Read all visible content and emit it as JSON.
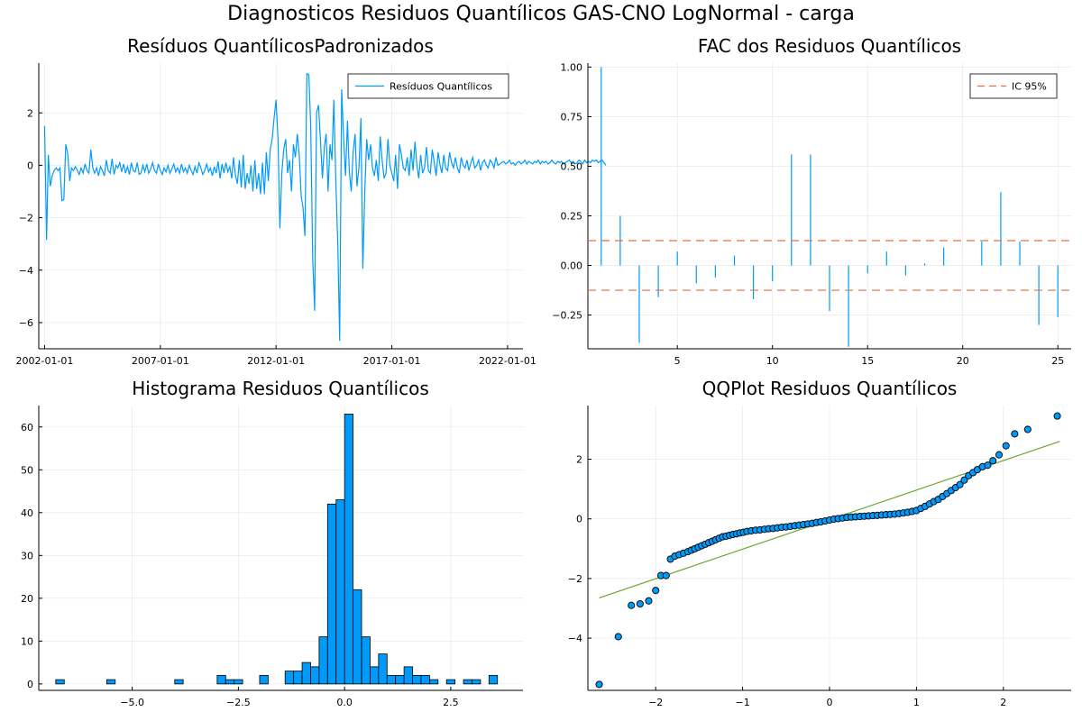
{
  "figure": {
    "title": "Diagnosticos Residuos  Quantílicos GAS-CNO LogNormal - carga"
  },
  "colors": {
    "series": "#009AFA",
    "ic": "#E26F46",
    "qqline": "#6AA631",
    "grid": "#E5E5E5",
    "axis": "#000000"
  },
  "chart_data": [
    {
      "id": "residuals",
      "type": "line",
      "title": "Resíduos  QuantílicosPadronizados",
      "x_axis": "date",
      "xlim": [
        "2001-10-01",
        "2022-09-01"
      ],
      "ylim": [
        -7,
        3.9
      ],
      "xticks": [
        {
          "value": "2002-01-01",
          "label": "2002-01-01"
        },
        {
          "value": "2007-01-01",
          "label": "2007-01-01"
        },
        {
          "value": "2012-01-01",
          "label": "2012-01-01"
        },
        {
          "value": "2017-01-01",
          "label": "2017-01-01"
        },
        {
          "value": "2022-01-01",
          "label": "2022-01-01"
        }
      ],
      "yticks": [
        {
          "value": -6,
          "label": "−6"
        },
        {
          "value": -4,
          "label": "−4"
        },
        {
          "value": -2,
          "label": "−2"
        },
        {
          "value": 0,
          "label": "0"
        },
        {
          "value": 2,
          "label": "2"
        }
      ],
      "legend": {
        "position": "top-right",
        "entries": [
          {
            "label": "Resíduos Quantílicos",
            "style": "line",
            "color": "#009AFA"
          }
        ]
      },
      "series": [
        {
          "name": "Resíduos Quantílicos",
          "x_start": "2002-01-01",
          "frequency": "monthly",
          "values": [
            1.5,
            -2.85,
            0.4,
            -0.8,
            -0.4,
            -0.2,
            -0.1,
            -0.2,
            -0.1,
            -1.35,
            -1.3,
            0.8,
            0.45,
            -0.6,
            -0.1,
            -0.2,
            -0.05,
            -0.2,
            -0.35,
            -0.1,
            -0.3,
            0.05,
            -0.2,
            -0.3,
            0.6,
            -0.1,
            -0.3,
            -0.1,
            -0.4,
            -0.05,
            -0.2,
            -0.4,
            0.2,
            -0.2,
            -0.3,
            0.25,
            -0.35,
            0.0,
            -0.1,
            0.1,
            -0.25,
            0.05,
            -0.3,
            -0.05,
            -0.35,
            0.1,
            -0.2,
            -0.25,
            0.1,
            -0.35,
            -0.3,
            0.0,
            -0.25,
            0.05,
            -0.3,
            -0.15,
            0.1,
            -0.2,
            -0.3,
            0.05,
            -0.2,
            -0.35,
            -0.1,
            -0.25,
            0.0,
            -0.3,
            -0.15,
            0.05,
            -0.25,
            -0.1,
            -0.3,
            0.05,
            -0.25,
            -0.1,
            -0.3,
            0.0,
            -0.2,
            -0.35,
            -0.05,
            -0.3,
            0.1,
            -0.1,
            -0.35,
            -0.2,
            0.05,
            -0.25,
            -0.1,
            -0.4,
            -0.05,
            -0.3,
            0.15,
            -0.5,
            0.05,
            -0.3,
            0.1,
            -0.25,
            -0.05,
            -0.5,
            0.3,
            -0.4,
            -0.7,
            0.2,
            -0.85,
            0.4,
            -0.9,
            -0.3,
            -0.7,
            0.0,
            -1.0,
            0.2,
            -0.9,
            -0.3,
            -1.1,
            0.1,
            -1.1,
            0.5,
            -0.6,
            0.6,
            1.0,
            1.8,
            2.5,
            1.0,
            -2.4,
            -0.3,
            0.6,
            1.0,
            -0.3,
            0.2,
            -1.0,
            0.8,
            0.3,
            1.2,
            0.4,
            -1.2,
            -1.6,
            -2.7,
            3.5,
            3.45,
            1.5,
            -3.5,
            -5.55,
            2.0,
            2.3,
            1.0,
            -0.5,
            0.7,
            1.2,
            -1.0,
            0.8,
            0.2,
            2.5,
            -0.6,
            -3.0,
            -6.7,
            2.9,
            1.1,
            -0.4,
            1.7,
            -0.2,
            -1.0,
            0.5,
            1.2,
            -0.8,
            -0.1,
            1.8,
            -3.95,
            -1.0,
            1.0,
            0.2,
            0.8,
            -0.1,
            -0.4,
            0.2,
            -0.6,
            1.1,
            0.2,
            -0.5,
            -0.3,
            1.0,
            0.0,
            -0.3,
            -0.6,
            0.4,
            -0.9,
            0.8,
            0.4,
            -0.1,
            -0.2,
            0.3,
            -0.4,
            0.6,
            -0.2,
            0.9,
            0.0,
            -0.5,
            0.4,
            -0.3,
            -0.1,
            0.7,
            -0.2,
            -0.3,
            0.6,
            0.1,
            -0.4,
            0.5,
            0.0,
            -0.3,
            0.4,
            -0.1,
            -0.2,
            0.5,
            0.1,
            -0.1,
            0.3,
            -0.1,
            -0.3,
            0.3,
            0.0,
            -0.1,
            0.2,
            -0.2,
            0.1,
            0.3,
            -0.1,
            0.0,
            0.2,
            -0.2,
            0.1,
            0.2,
            0.0,
            -0.1,
            0.2,
            0.1,
            -0.1,
            0.3,
            0.0,
            0.05,
            0.1,
            0.15,
            0.05,
            0.1,
            0.2,
            0.05,
            0.1,
            0.0,
            0.1,
            0.15,
            0.05,
            0.1,
            0.2,
            0.05,
            0.15,
            0.1,
            0.05,
            0.15,
            0.1,
            0.2,
            0.05,
            0.15,
            0.1,
            0.15,
            0.05,
            0.1,
            0.2,
            0.1,
            0.05,
            0.15,
            0.1,
            0.15,
            0.05,
            0.1,
            0.15,
            0.2,
            0.1,
            0.15,
            0.05,
            0.1,
            0.2,
            0.15,
            0.05,
            0.2,
            0.1,
            0.15,
            0.1,
            0.2,
            0.15,
            0.2,
            0.1,
            0.15,
            0.2,
            0.1,
            0.0
          ]
        }
      ]
    },
    {
      "id": "acf",
      "type": "bar",
      "title": "FAC dos Residuos Quantílicos",
      "xlim": [
        0.3,
        25.7
      ],
      "ylim": [
        -0.42,
        1.02
      ],
      "xticks": [
        {
          "value": 5,
          "label": "5"
        },
        {
          "value": 10,
          "label": "10"
        },
        {
          "value": 15,
          "label": "15"
        },
        {
          "value": 20,
          "label": "20"
        },
        {
          "value": 25,
          "label": "25"
        }
      ],
      "yticks": [
        {
          "value": -0.25,
          "label": "−0.25"
        },
        {
          "value": 0,
          "label": "0.00"
        },
        {
          "value": 0.25,
          "label": "0.25"
        },
        {
          "value": 0.5,
          "label": "0.50"
        },
        {
          "value": 0.75,
          "label": "0.75"
        },
        {
          "value": 1,
          "label": "1.00"
        }
      ],
      "legend": {
        "position": "top-right",
        "entries": [
          {
            "label": "IC 95%",
            "style": "dashed",
            "color": "#E26F46"
          }
        ]
      },
      "lags": [
        1,
        2,
        3,
        4,
        5,
        6,
        7,
        8,
        9,
        10,
        11,
        12,
        13,
        14,
        15,
        16,
        17,
        18,
        19,
        20,
        21,
        22,
        23,
        24,
        25
      ],
      "values": [
        1.0,
        0.25,
        -0.39,
        -0.16,
        0.07,
        -0.09,
        -0.06,
        0.05,
        -0.17,
        -0.08,
        0.56,
        0.56,
        -0.23,
        -0.41,
        -0.04,
        0.07,
        -0.05,
        0.01,
        0.09,
        0.0,
        0.12,
        0.37,
        0.12,
        -0.3,
        -0.26
      ],
      "confidence_band": 0.125
    },
    {
      "id": "histogram",
      "type": "bar",
      "title": "Histograma Residuos Quantílicos",
      "xlim": [
        -7.2,
        4.2
      ],
      "ylim": [
        -1.5,
        65
      ],
      "xticks": [
        {
          "value": -5,
          "label": "−5.0"
        },
        {
          "value": -2.5,
          "label": "−2.5"
        },
        {
          "value": 0,
          "label": "0.0"
        },
        {
          "value": 2.5,
          "label": "2.5"
        }
      ],
      "yticks": [
        {
          "value": 0,
          "label": "0"
        },
        {
          "value": 10,
          "label": "10"
        },
        {
          "value": 20,
          "label": "20"
        },
        {
          "value": 30,
          "label": "30"
        },
        {
          "value": 40,
          "label": "40"
        },
        {
          "value": 50,
          "label": "50"
        },
        {
          "value": 60,
          "label": "60"
        }
      ],
      "bins": [
        -6.8,
        -6.6,
        -6.4,
        -6.2,
        -6.0,
        -5.8,
        -5.6,
        -5.4,
        -5.2,
        -5.0,
        -4.8,
        -4.6,
        -4.4,
        -4.2,
        -4.0,
        -3.8,
        -3.6,
        -3.4,
        -3.2,
        -3.0,
        -2.8,
        -2.6,
        -2.4,
        -2.2,
        -2.0,
        -1.8,
        -1.6,
        -1.4,
        -1.2,
        -1.0,
        -0.8,
        -0.6,
        -0.4,
        -0.2,
        0.0,
        0.2,
        0.4,
        0.6,
        0.8,
        1.0,
        1.2,
        1.4,
        1.6,
        1.8,
        2.0,
        2.2,
        2.4,
        2.6,
        2.8,
        3.0,
        3.2,
        3.4,
        3.6
      ],
      "counts": [
        1,
        0,
        0,
        0,
        0,
        0,
        1,
        0,
        0,
        0,
        0,
        0,
        0,
        0,
        1,
        0,
        0,
        0,
        0,
        2,
        1,
        1,
        0,
        0,
        2,
        0,
        0,
        3,
        3,
        5,
        4,
        11,
        42,
        43,
        63,
        22,
        11,
        4,
        7,
        2,
        2,
        4,
        2,
        2,
        1,
        0,
        1,
        0,
        1,
        1,
        0,
        2
      ]
    },
    {
      "id": "qqplot",
      "type": "scatter",
      "title": "QQPlot Residuos Quantílicos",
      "xlim": [
        -2.78,
        2.78
      ],
      "ylim": [
        -5.75,
        3.8
      ],
      "xticks": [
        {
          "value": -2,
          "label": "−2"
        },
        {
          "value": -1,
          "label": "−1"
        },
        {
          "value": 0,
          "label": "0"
        },
        {
          "value": 1,
          "label": "1"
        },
        {
          "value": 2,
          "label": "2"
        }
      ],
      "yticks": [
        {
          "value": -4,
          "label": "−4"
        },
        {
          "value": -2,
          "label": "−2"
        },
        {
          "value": 0,
          "label": "0"
        },
        {
          "value": 2,
          "label": "2"
        }
      ],
      "reference_line": {
        "x": [
          -2.65,
          2.65
        ],
        "y": [
          -2.65,
          2.6
        ]
      },
      "points": [
        [
          -2.65,
          -5.55
        ],
        [
          -2.43,
          -3.95
        ],
        [
          -2.28,
          -2.9
        ],
        [
          -2.18,
          -2.85
        ],
        [
          -2.08,
          -2.75
        ],
        [
          -2.0,
          -2.4
        ],
        [
          -1.94,
          -1.9
        ],
        [
          -1.88,
          -1.9
        ],
        [
          -1.83,
          -1.35
        ],
        [
          -1.78,
          -1.25
        ],
        [
          -1.73,
          -1.2
        ],
        [
          -1.68,
          -1.15
        ],
        [
          -1.63,
          -1.1
        ],
        [
          -1.59,
          -1.05
        ],
        [
          -1.55,
          -1.0
        ],
        [
          -1.51,
          -0.95
        ],
        [
          -1.47,
          -0.9
        ],
        [
          -1.43,
          -0.85
        ],
        [
          -1.39,
          -0.8
        ],
        [
          -1.35,
          -0.75
        ],
        [
          -1.31,
          -0.7
        ],
        [
          -1.27,
          -0.65
        ],
        [
          -1.23,
          -0.6
        ],
        [
          -1.19,
          -0.58
        ],
        [
          -1.15,
          -0.55
        ],
        [
          -1.11,
          -0.52
        ],
        [
          -1.07,
          -0.5
        ],
        [
          -1.03,
          -0.47
        ],
        [
          -0.99,
          -0.45
        ],
        [
          -0.95,
          -0.42
        ],
        [
          -0.9,
          -0.4
        ],
        [
          -0.85,
          -0.38
        ],
        [
          -0.8,
          -0.37
        ],
        [
          -0.75,
          -0.35
        ],
        [
          -0.7,
          -0.33
        ],
        [
          -0.65,
          -0.32
        ],
        [
          -0.6,
          -0.3
        ],
        [
          -0.55,
          -0.28
        ],
        [
          -0.5,
          -0.27
        ],
        [
          -0.45,
          -0.25
        ],
        [
          -0.4,
          -0.23
        ],
        [
          -0.35,
          -0.21
        ],
        [
          -0.3,
          -0.19
        ],
        [
          -0.25,
          -0.17
        ],
        [
          -0.2,
          -0.15
        ],
        [
          -0.15,
          -0.12
        ],
        [
          -0.1,
          -0.1
        ],
        [
          -0.05,
          -0.07
        ],
        [
          0.0,
          -0.04
        ],
        [
          0.05,
          -0.01
        ],
        [
          0.1,
          0.01
        ],
        [
          0.15,
          0.03
        ],
        [
          0.2,
          0.05
        ],
        [
          0.25,
          0.06
        ],
        [
          0.3,
          0.07
        ],
        [
          0.35,
          0.08
        ],
        [
          0.4,
          0.09
        ],
        [
          0.45,
          0.1
        ],
        [
          0.5,
          0.11
        ],
        [
          0.55,
          0.12
        ],
        [
          0.6,
          0.13
        ],
        [
          0.65,
          0.14
        ],
        [
          0.7,
          0.15
        ],
        [
          0.75,
          0.16
        ],
        [
          0.8,
          0.18
        ],
        [
          0.85,
          0.2
        ],
        [
          0.9,
          0.22
        ],
        [
          0.95,
          0.25
        ],
        [
          1.0,
          0.28
        ],
        [
          1.05,
          0.35
        ],
        [
          1.1,
          0.42
        ],
        [
          1.15,
          0.5
        ],
        [
          1.2,
          0.58
        ],
        [
          1.25,
          0.65
        ],
        [
          1.3,
          0.75
        ],
        [
          1.35,
          0.85
        ],
        [
          1.4,
          0.95
        ],
        [
          1.45,
          1.05
        ],
        [
          1.5,
          1.15
        ],
        [
          1.55,
          1.3
        ],
        [
          1.6,
          1.45
        ],
        [
          1.65,
          1.55
        ],
        [
          1.7,
          1.65
        ],
        [
          1.76,
          1.75
        ],
        [
          1.82,
          1.8
        ],
        [
          1.88,
          1.95
        ],
        [
          1.95,
          2.15
        ],
        [
          2.03,
          2.45
        ],
        [
          2.13,
          2.85
        ],
        [
          2.28,
          3.0
        ],
        [
          2.62,
          3.45
        ]
      ]
    }
  ]
}
